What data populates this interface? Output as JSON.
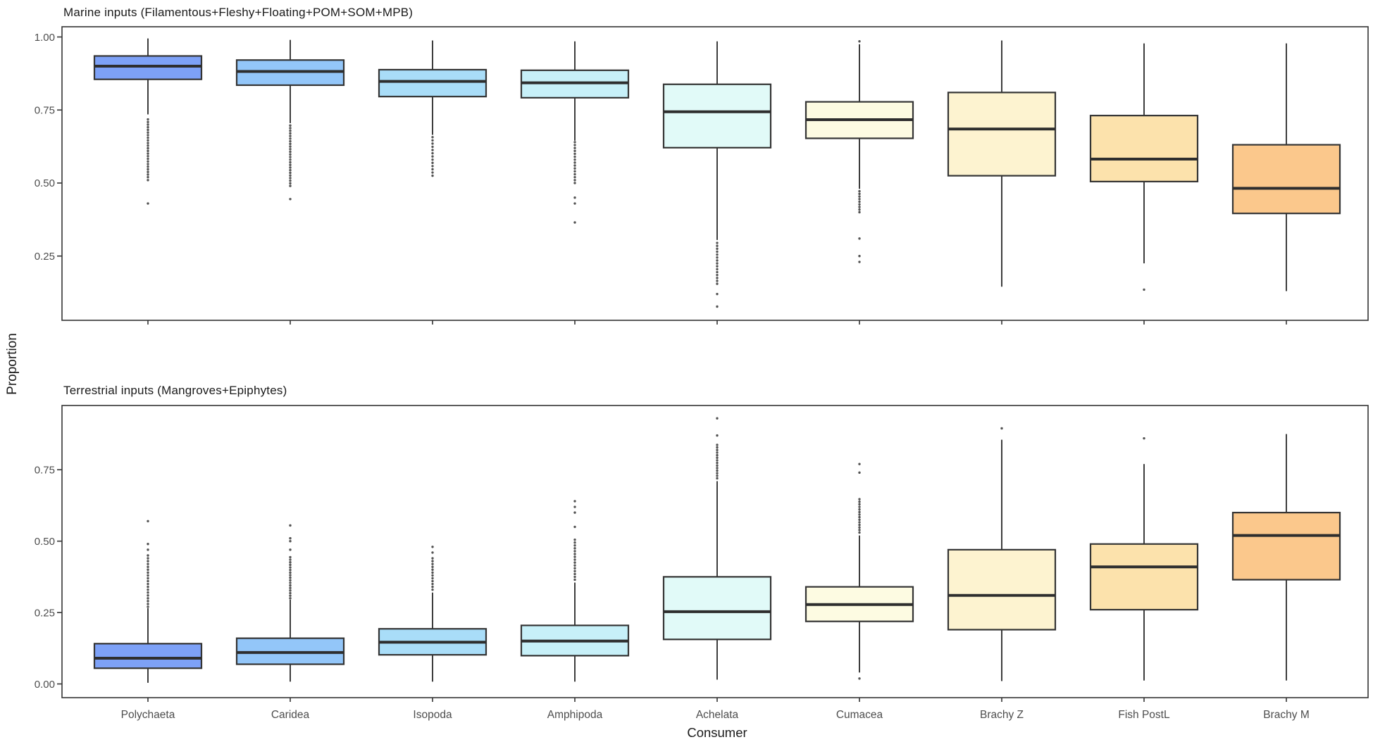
{
  "axes": {
    "y_label": "Proportion",
    "x_label": "Consumer"
  },
  "palette": {
    "box_border": "#343434",
    "median_line": "#2e2e2e",
    "whisker": "#333333",
    "outlier_dot": "#404040",
    "panel_border": "#333333",
    "tick_label": "#4d4d4d",
    "title_text": "#1a1a1a"
  },
  "chart_data": [
    {
      "type": "boxplot",
      "title": "Marine inputs (Filamentous+Fleshy+Floating+POM+SOM+MPB)",
      "categories": [
        "Polychaeta",
        "Caridea",
        "Isopoda",
        "Amphipoda",
        "Achelata",
        "Cumacea",
        "Brachy Z",
        "Fish PostL",
        "Brachy M"
      ],
      "ylim": [
        0.03,
        1.035
      ],
      "grid": false,
      "yticks": [
        {
          "label": "1.00",
          "value": 1.0
        },
        {
          "label": "0.75",
          "value": 0.75
        },
        {
          "label": "0.50",
          "value": 0.5
        },
        {
          "label": "0.25",
          "value": 0.25
        }
      ],
      "boxes": [
        {
          "category": "Polychaeta",
          "color": "#7DA1F7",
          "low": 0.735,
          "q1": 0.855,
          "median": 0.9,
          "q3": 0.935,
          "high": 0.995,
          "outlier_runs": [
            {
              "from": 0.52,
              "to": 0.725,
              "step": 0.009
            }
          ],
          "outliers": [
            0.51,
            0.43
          ]
        },
        {
          "category": "Caridea",
          "color": "#93C6F9",
          "low": 0.705,
          "q1": 0.835,
          "median": 0.882,
          "q3": 0.921,
          "high": 0.99,
          "outlier_runs": [
            {
              "from": 0.49,
              "to": 0.7,
              "step": 0.009
            }
          ],
          "outliers": [
            0.445
          ]
        },
        {
          "category": "Isopoda",
          "color": "#A9DDF8",
          "low": 0.665,
          "q1": 0.796,
          "median": 0.848,
          "q3": 0.888,
          "high": 0.988,
          "outlier_runs": [
            {
              "from": 0.525,
              "to": 0.66,
              "step": 0.011
            }
          ],
          "outliers": []
        },
        {
          "category": "Amphipoda",
          "color": "#C7F0F8",
          "low": 0.645,
          "q1": 0.792,
          "median": 0.843,
          "q3": 0.886,
          "high": 0.985,
          "outlier_runs": [
            {
              "from": 0.5,
              "to": 0.64,
              "step": 0.01
            }
          ],
          "outliers": [
            0.45,
            0.43,
            0.365
          ]
        },
        {
          "category": "Achelata",
          "color": "#E1FAF8",
          "low": 0.305,
          "q1": 0.621,
          "median": 0.744,
          "q3": 0.838,
          "high": 0.985,
          "outlier_runs": [
            {
              "from": 0.155,
              "to": 0.3,
              "step": 0.01
            }
          ],
          "outliers": [
            0.12,
            0.077
          ]
        },
        {
          "category": "Cumacea",
          "color": "#FDFBE2",
          "low": 0.48,
          "q1": 0.653,
          "median": 0.717,
          "q3": 0.778,
          "high": 0.975,
          "outlier_runs": [
            {
              "from": 0.4,
              "to": 0.475,
              "step": 0.009
            }
          ],
          "outliers": [
            0.985,
            0.31,
            0.25,
            0.23
          ]
        },
        {
          "category": "Brachy Z",
          "color": "#FDF3D0",
          "low": 0.145,
          "q1": 0.525,
          "median": 0.685,
          "q3": 0.81,
          "high": 0.988,
          "outlier_runs": [],
          "outliers": []
        },
        {
          "category": "Fish PostL",
          "color": "#FCE2AC",
          "low": 0.225,
          "q1": 0.505,
          "median": 0.582,
          "q3": 0.731,
          "high": 0.978,
          "outlier_runs": [],
          "outliers": [
            0.135
          ]
        },
        {
          "category": "Brachy M",
          "color": "#FBC88C",
          "low": 0.13,
          "q1": 0.396,
          "median": 0.482,
          "q3": 0.631,
          "high": 0.978,
          "outlier_runs": [],
          "outliers": []
        }
      ]
    },
    {
      "type": "boxplot",
      "title": "Terrestrial inputs (Mangroves+Epiphytes)",
      "categories": [
        "Polychaeta",
        "Caridea",
        "Isopoda",
        "Amphipoda",
        "Achelata",
        "Cumacea",
        "Brachy Z",
        "Fish PostL",
        "Brachy M"
      ],
      "ylim": [
        -0.048,
        0.975
      ],
      "grid": false,
      "yticks": [
        {
          "label": "0.75",
          "value": 0.75
        },
        {
          "label": "0.50",
          "value": 0.5
        },
        {
          "label": "0.25",
          "value": 0.25
        },
        {
          "label": "0.00",
          "value": 0.0
        }
      ],
      "boxes": [
        {
          "category": "Polychaeta",
          "color": "#7DA1F7",
          "low": 0.004,
          "q1": 0.055,
          "median": 0.09,
          "q3": 0.141,
          "high": 0.265,
          "outlier_runs": [
            {
              "from": 0.27,
              "to": 0.45,
              "step": 0.01
            }
          ],
          "outliers": [
            0.47,
            0.49,
            0.57
          ]
        },
        {
          "category": "Caridea",
          "color": "#93C6F9",
          "low": 0.008,
          "q1": 0.069,
          "median": 0.11,
          "q3": 0.16,
          "high": 0.295,
          "outlier_runs": [
            {
              "from": 0.3,
              "to": 0.45,
              "step": 0.009
            }
          ],
          "outliers": [
            0.47,
            0.5,
            0.51,
            0.555
          ]
        },
        {
          "category": "Isopoda",
          "color": "#A9DDF8",
          "low": 0.008,
          "q1": 0.102,
          "median": 0.146,
          "q3": 0.193,
          "high": 0.32,
          "outlier_runs": [
            {
              "from": 0.33,
              "to": 0.44,
              "step": 0.01
            }
          ],
          "outliers": [
            0.46,
            0.48
          ]
        },
        {
          "category": "Amphipoda",
          "color": "#C7F0F8",
          "low": 0.008,
          "q1": 0.099,
          "median": 0.15,
          "q3": 0.205,
          "high": 0.355,
          "outlier_runs": [
            {
              "from": 0.365,
              "to": 0.51,
              "step": 0.01
            }
          ],
          "outliers": [
            0.55,
            0.6,
            0.62,
            0.64
          ]
        },
        {
          "category": "Achelata",
          "color": "#E1FAF8",
          "low": 0.015,
          "q1": 0.156,
          "median": 0.253,
          "q3": 0.375,
          "high": 0.71,
          "outlier_runs": [
            {
              "from": 0.72,
              "to": 0.84,
              "step": 0.009
            }
          ],
          "outliers": [
            0.87,
            0.93
          ]
        },
        {
          "category": "Cumacea",
          "color": "#FDFBE2",
          "low": 0.04,
          "q1": 0.219,
          "median": 0.278,
          "q3": 0.34,
          "high": 0.52,
          "outlier_runs": [
            {
              "from": 0.53,
              "to": 0.65,
              "step": 0.009
            }
          ],
          "outliers": [
            0.019,
            0.74,
            0.77
          ]
        },
        {
          "category": "Brachy Z",
          "color": "#FDF3D0",
          "low": 0.01,
          "q1": 0.19,
          "median": 0.31,
          "q3": 0.47,
          "high": 0.855,
          "outlier_runs": [],
          "outliers": [
            0.895
          ]
        },
        {
          "category": "Fish PostL",
          "color": "#FCE2AC",
          "low": 0.012,
          "q1": 0.26,
          "median": 0.41,
          "q3": 0.49,
          "high": 0.77,
          "outlier_runs": [],
          "outliers": [
            0.86
          ]
        },
        {
          "category": "Brachy M",
          "color": "#FBC88C",
          "low": 0.012,
          "q1": 0.365,
          "median": 0.52,
          "q3": 0.6,
          "high": 0.875,
          "outlier_runs": [],
          "outliers": []
        }
      ]
    }
  ]
}
